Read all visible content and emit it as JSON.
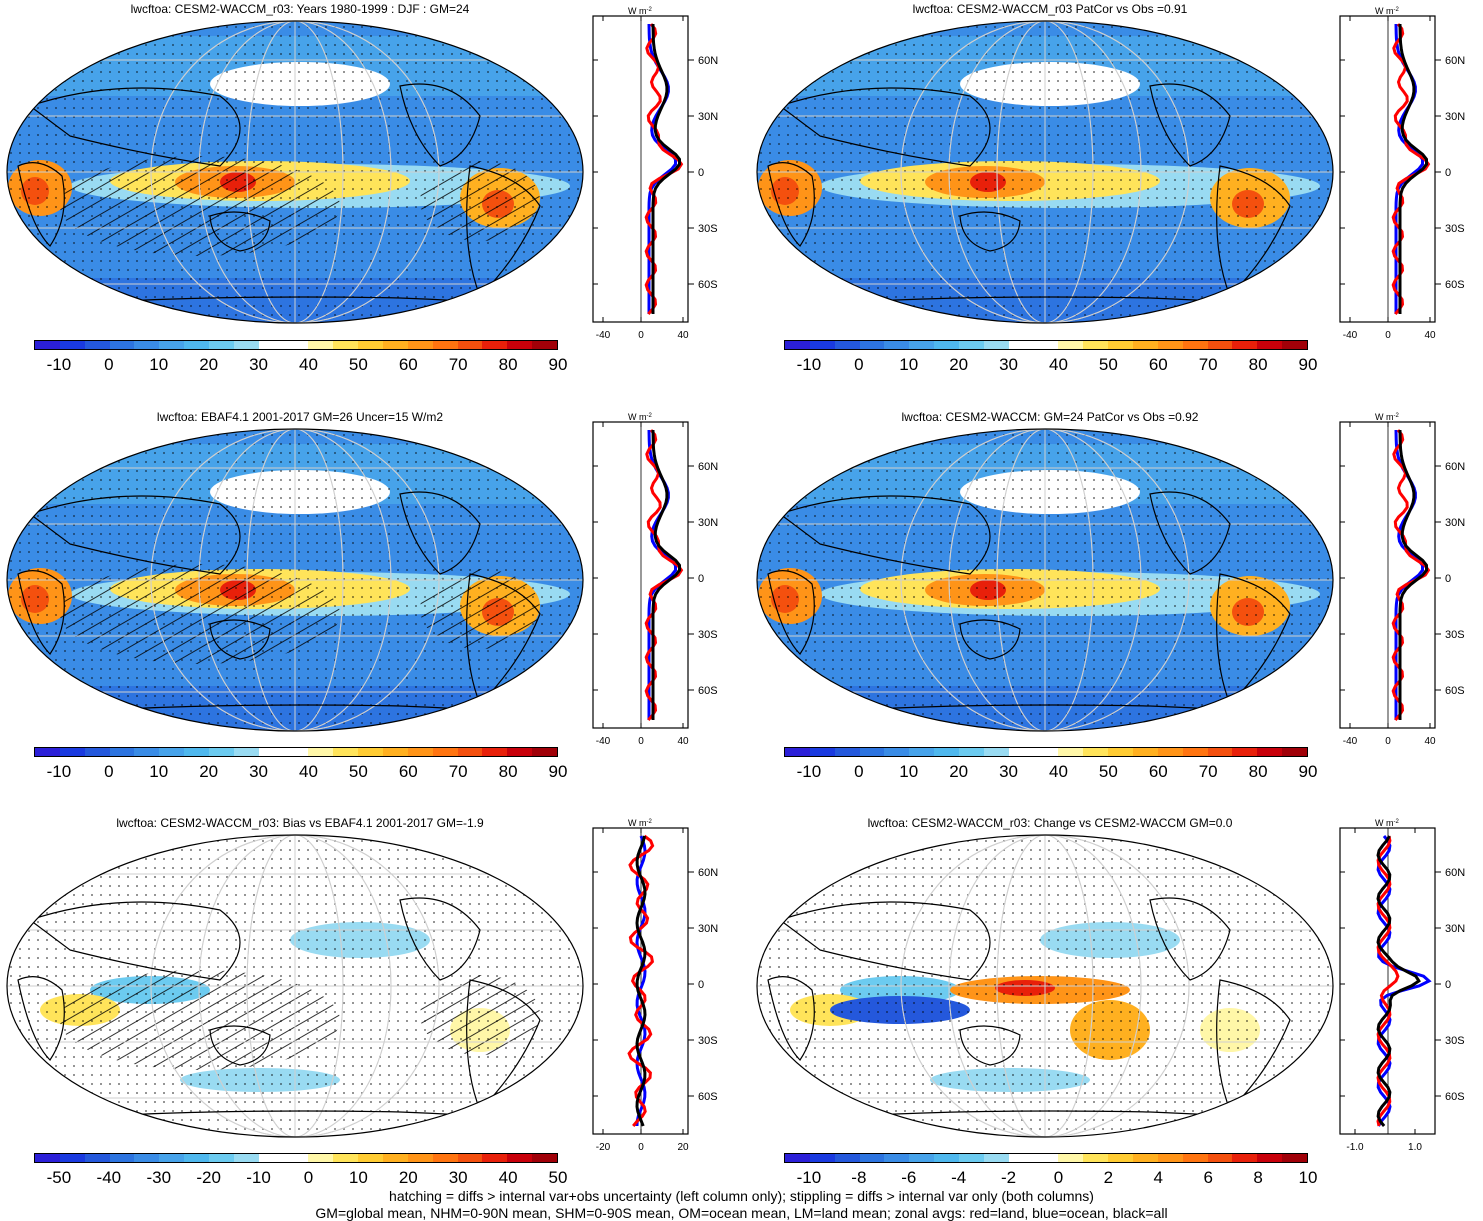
{
  "panels": [
    {
      "title": "lwcftoa: CESM2-WACCM_r03: Years 1980-1999 : DJF : GM=24",
      "hatch": true,
      "cbar": "full"
    },
    {
      "title": "lwcftoa: CESM2-WACCM_r03 PatCor vs Obs =0.91",
      "hatch": false,
      "cbar": "full"
    },
    {
      "title": "lwcftoa: EBAF4.1 2001-2017 GM=26 Uncer=15 W/m2",
      "hatch": true,
      "cbar": "full"
    },
    {
      "title": "lwcftoa: CESM2-WACCM: GM=24 PatCor vs Obs =0.92",
      "hatch": false,
      "cbar": "full"
    },
    {
      "title": "lwcftoa: CESM2-WACCM_r03: Bias vs EBAF4.1 2001-2017 GM=-1.9",
      "hatch": true,
      "cbar": "bias"
    },
    {
      "title": "lwcftoa: CESM2-WACCM_r03: Change vs CESM2-WACCM GM=0.0",
      "hatch": false,
      "cbar": "change"
    }
  ],
  "colorbars": {
    "full": [
      "-10",
      "0",
      "10",
      "20",
      "30",
      "40",
      "50",
      "60",
      "70",
      "80",
      "90"
    ],
    "bias": [
      "-50",
      "-40",
      "-30",
      "-20",
      "-10",
      "0",
      "10",
      "20",
      "30",
      "40",
      "50"
    ],
    "change": [
      "-10",
      "-8",
      "-6",
      "-4",
      "-2",
      "0",
      "2",
      "4",
      "6",
      "8",
      "10"
    ]
  },
  "zonal_axes": {
    "unit": "W m",
    "unit_sup": "-2",
    "lat_labels": [
      "60N",
      "30N",
      "0",
      "30S",
      "60S"
    ],
    "x_full": [
      "-40",
      "0",
      "40"
    ],
    "x_bias": [
      "-20",
      "0",
      "20"
    ],
    "x_change": [
      "-1.0",
      "1.0"
    ]
  },
  "colors": {
    "palette": [
      "#2b1fd8",
      "#1a3ae0",
      "#2458dc",
      "#2d74e0",
      "#3a8ce6",
      "#47a3ea",
      "#4fb8ee",
      "#6ccbf0",
      "#99dbf2",
      "#ffffff",
      "#ffffff",
      "#fff7a8",
      "#ffe45a",
      "#ffcc33",
      "#ffb020",
      "#ff9418",
      "#ff7410",
      "#f4500e",
      "#e8200a",
      "#c8000a",
      "#a00008"
    ],
    "land_line": "#ff0000",
    "ocean_line": "#0000ff",
    "all_line": "#000000"
  },
  "footer": {
    "line1": "hatching = diffs > internal var+obs uncertainty (left column only); stippling = diffs > internal var only (both columns)",
    "line2": "GM=global mean, NHM=0-90N mean, SHM=0-90S mean, OM=ocean mean, LM=land mean; zonal avgs: red=land, blue=ocean, black=all"
  }
}
